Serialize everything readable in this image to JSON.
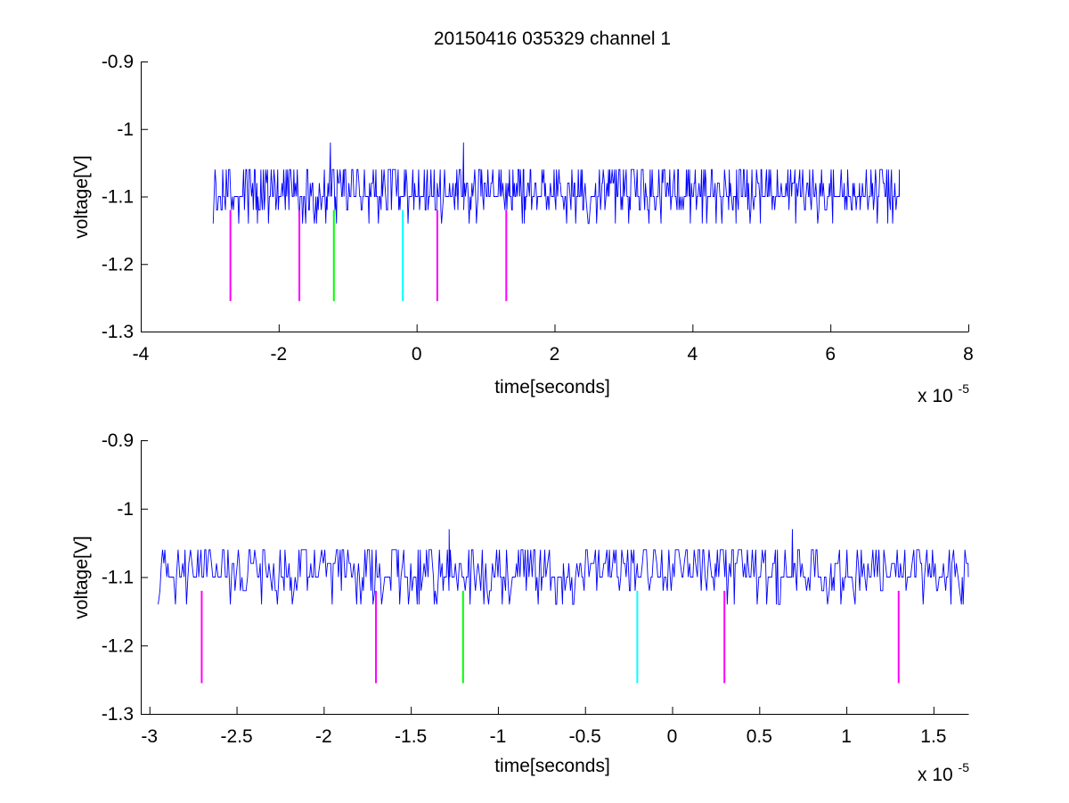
{
  "title": "20150416 035329 channel 1",
  "chart_data": [
    {
      "type": "line",
      "title": "20150416 035329 channel 1",
      "xlabel": "time[seconds]",
      "ylabel": "voltage[V]",
      "x_exponent_label": "x 10",
      "x_exponent": "-5",
      "xlim": [
        -4,
        8
      ],
      "ylim": [
        -1.3,
        -0.9
      ],
      "x_ticks": [
        -4,
        -2,
        0,
        2,
        4,
        6,
        8
      ],
      "x_tick_labels": [
        "-4",
        "-2",
        "0",
        "2",
        "4",
        "6",
        "8"
      ],
      "y_ticks": [
        -1.3,
        -1.2,
        -1.1,
        -1.0,
        -0.9
      ],
      "y_tick_labels": [
        "-1.3",
        "-1.2",
        "-1.1",
        "-1",
        "-0.9"
      ],
      "grid": false,
      "series": [
        {
          "color": "#0000ff",
          "x_range": [
            -2.95,
            7.0
          ],
          "baseline": -1.1,
          "levels": [
            -1.14,
            -1.12,
            -1.1,
            -1.08,
            -1.06
          ],
          "spikes": [
            {
              "x": -1.25,
              "y": -1.02
            },
            {
              "x": 0.68,
              "y": -1.02
            }
          ],
          "values_sampled": [
            -1.14,
            -1.1,
            -1.06,
            -1.1,
            -1.08,
            -1.06,
            -1.1,
            -1.12,
            -1.1,
            -1.06,
            -1.08,
            -1.1,
            -1.14,
            -1.1,
            -1.06,
            -1.1,
            -1.08,
            -1.06,
            -1.1,
            -1.1
          ]
        }
      ],
      "markers": [
        {
          "x": -2.7,
          "y_top": -1.12,
          "y_bottom": -1.255,
          "color": "#ff00ff"
        },
        {
          "x": -1.7,
          "y_top": -1.12,
          "y_bottom": -1.255,
          "color": "#ff00ff"
        },
        {
          "x": -1.2,
          "y_top": -1.12,
          "y_bottom": -1.255,
          "color": "#00ff00"
        },
        {
          "x": -0.2,
          "y_top": -1.12,
          "y_bottom": -1.255,
          "color": "#00ffff"
        },
        {
          "x": 0.3,
          "y_top": -1.12,
          "y_bottom": -1.255,
          "color": "#ff00ff"
        },
        {
          "x": 1.3,
          "y_top": -1.12,
          "y_bottom": -1.255,
          "color": "#ff00ff"
        }
      ]
    },
    {
      "type": "line",
      "title": "",
      "xlabel": "time[seconds]",
      "ylabel": "voltage[V]",
      "x_exponent_label": "x 10",
      "x_exponent": "-5",
      "xlim": [
        -3.05,
        1.7
      ],
      "ylim": [
        -1.3,
        -0.9
      ],
      "x_ticks": [
        -3,
        -2.5,
        -2,
        -1.5,
        -1,
        -0.5,
        0,
        0.5,
        1,
        1.5
      ],
      "x_tick_labels": [
        "-3",
        "-2.5",
        "-2",
        "-1.5",
        "-1",
        "-0.5",
        "0",
        "0.5",
        "1",
        "1.5"
      ],
      "y_ticks": [
        -1.3,
        -1.2,
        -1.1,
        -1.0,
        -0.9
      ],
      "y_tick_labels": [
        "-1.3",
        "-1.2",
        "-1.1",
        "-1",
        "-0.9"
      ],
      "grid": false,
      "series": [
        {
          "color": "#0000ff",
          "x_range": [
            -2.95,
            1.7
          ],
          "baseline": -1.1,
          "levels": [
            -1.14,
            -1.12,
            -1.1,
            -1.08,
            -1.06
          ],
          "spikes": [
            {
              "x": -1.28,
              "y": -1.03
            },
            {
              "x": 0.69,
              "y": -1.03
            }
          ],
          "values_sampled": [
            -1.14,
            -1.06,
            -1.1,
            -1.06,
            -1.1,
            -1.08,
            -1.06,
            -1.12,
            -1.1,
            -1.06,
            -1.1,
            -1.12,
            -1.06,
            -1.1,
            -1.08,
            -1.1,
            -1.06,
            -1.1,
            -1.14,
            -1.1
          ]
        }
      ],
      "markers": [
        {
          "x": -2.7,
          "y_top": -1.12,
          "y_bottom": -1.255,
          "color": "#ff00ff"
        },
        {
          "x": -1.7,
          "y_top": -1.12,
          "y_bottom": -1.255,
          "color": "#ff00ff"
        },
        {
          "x": -1.2,
          "y_top": -1.12,
          "y_bottom": -1.255,
          "color": "#00ff00"
        },
        {
          "x": -0.2,
          "y_top": -1.12,
          "y_bottom": -1.255,
          "color": "#00ffff"
        },
        {
          "x": 0.3,
          "y_top": -1.12,
          "y_bottom": -1.255,
          "color": "#ff00ff"
        },
        {
          "x": 1.3,
          "y_top": -1.12,
          "y_bottom": -1.255,
          "color": "#ff00ff"
        }
      ]
    }
  ]
}
